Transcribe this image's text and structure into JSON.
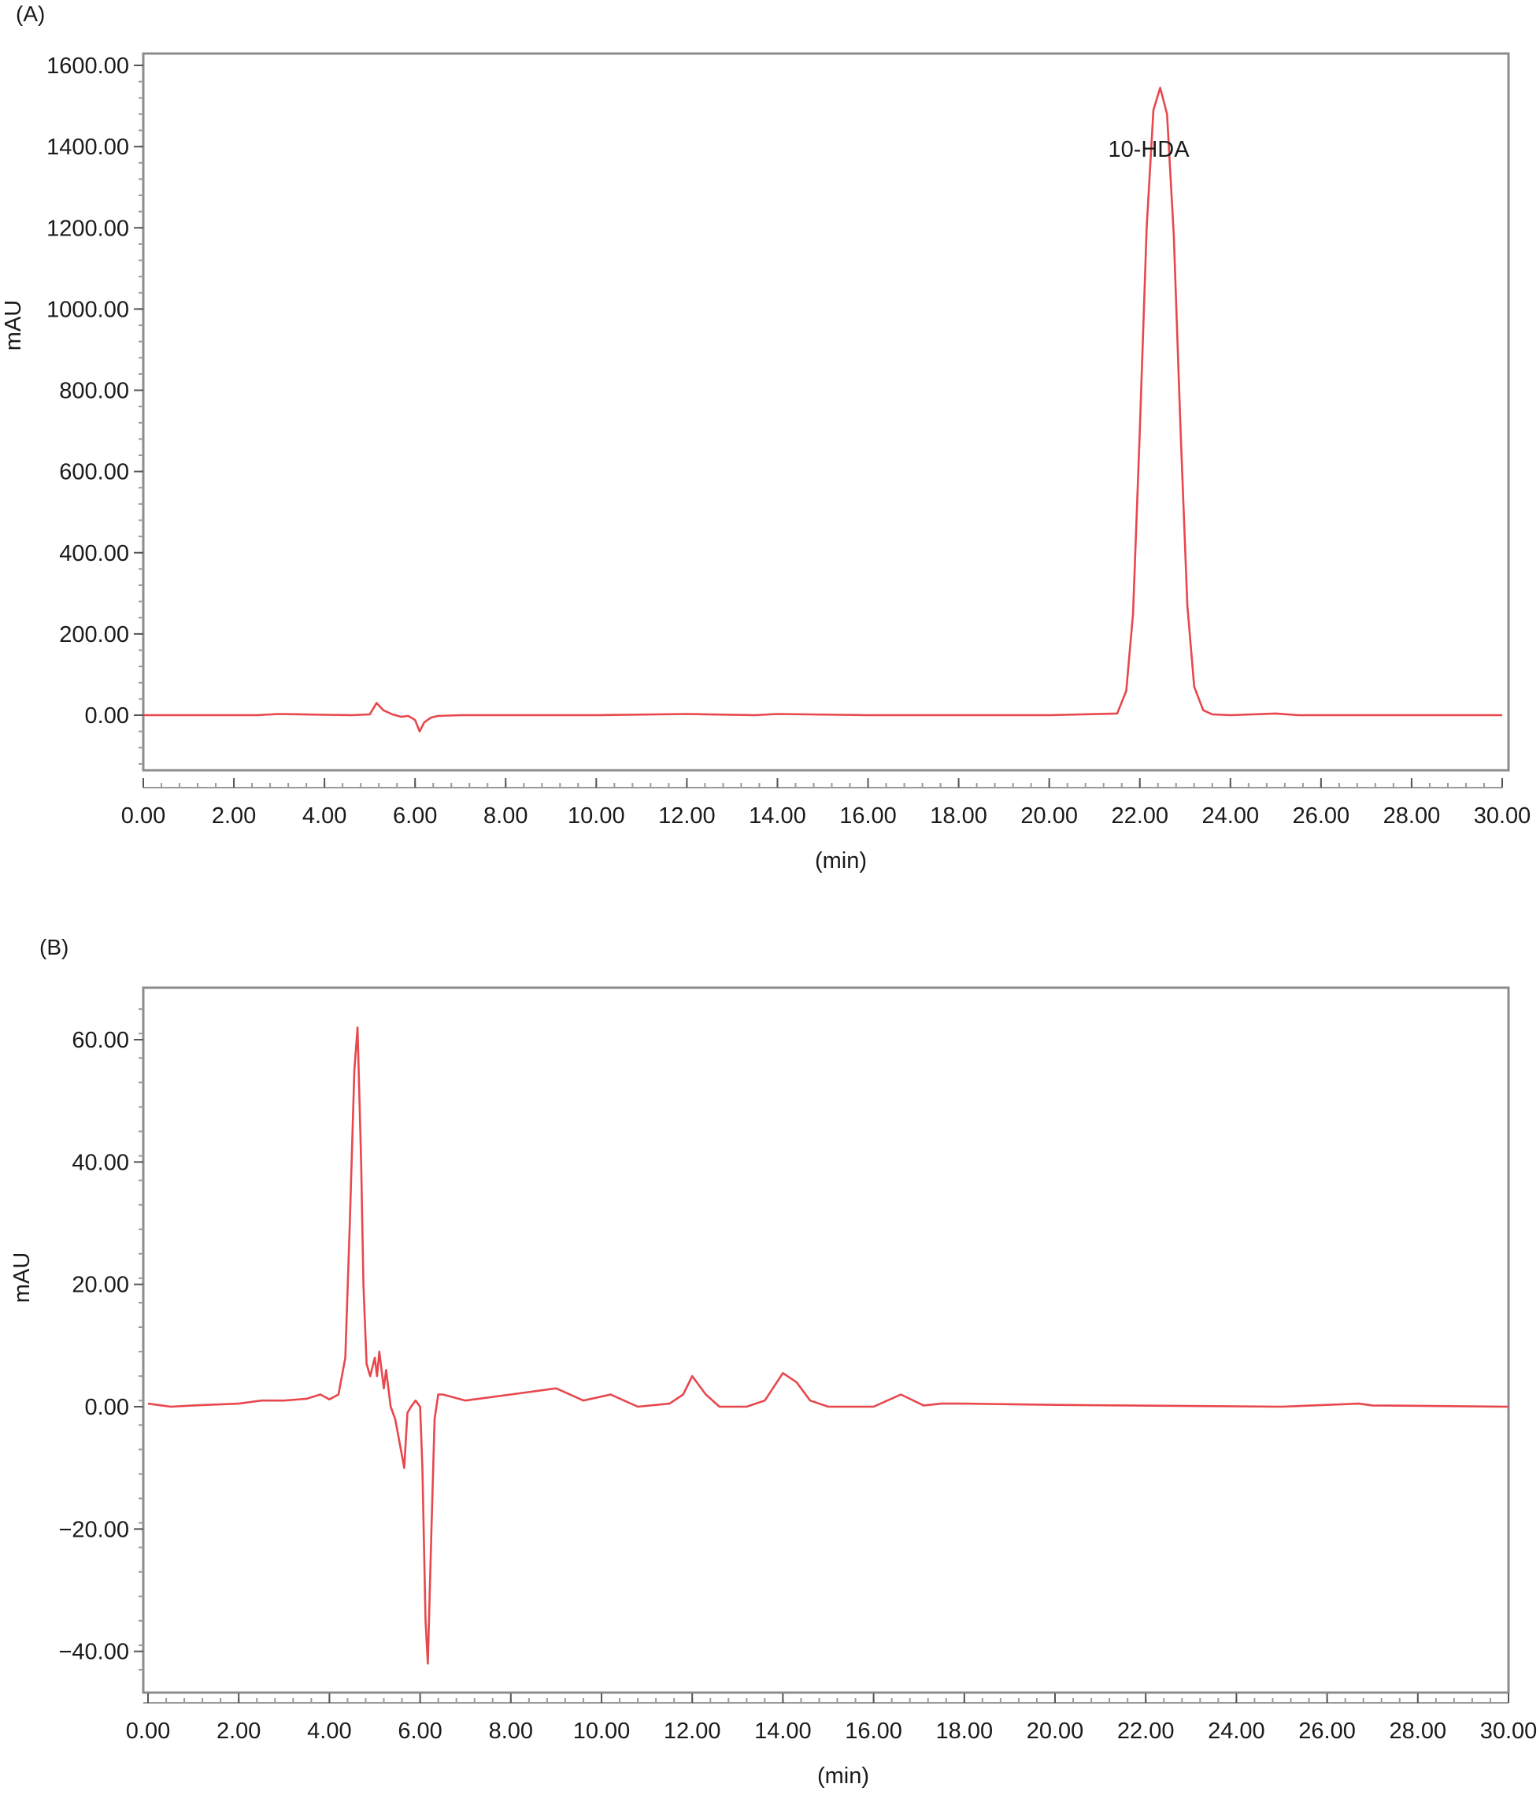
{
  "colors": {
    "trace": "#e8474c",
    "frame": "#8c8c8c",
    "text": "#1a1a1a"
  },
  "chart_data": [
    {
      "type": "line",
      "panel_label": "(A)",
      "xlabel": "(min)",
      "ylabel": "mAU",
      "xlim": [
        0,
        30
      ],
      "ylim": [
        -120,
        1620
      ],
      "x_ticks": [
        "0.00",
        "2.00",
        "4.00",
        "6.00",
        "8.00",
        "10.00",
        "12.00",
        "14.00",
        "16.00",
        "18.00",
        "20.00",
        "22.00",
        "24.00",
        "26.00",
        "28.00",
        "30.00"
      ],
      "y_ticks": [
        "1600.00",
        "1400.00",
        "1200.00",
        "1000.00",
        "800.00",
        "600.00",
        "400.00",
        "200.00",
        "0.00"
      ],
      "annotations": [
        {
          "text": "10-HDA",
          "x": 21.3,
          "y": 1375
        }
      ],
      "series": [
        {
          "x": [
            0,
            2.5,
            3,
            4,
            4.6,
            5.0,
            5.15,
            5.3,
            5.5,
            5.7,
            5.85,
            6.0,
            6.1,
            6.2,
            6.35,
            6.5,
            7,
            10,
            12,
            13.5,
            14,
            16,
            20,
            21.5,
            21.7,
            21.85,
            22.0,
            22.15,
            22.3,
            22.45,
            22.6,
            22.75,
            22.9,
            23.05,
            23.2,
            23.4,
            23.6,
            24,
            25,
            25.5,
            26,
            30
          ],
          "y": [
            0,
            0,
            3,
            1,
            0,
            2,
            30,
            12,
            2,
            -4,
            -2,
            -12,
            -40,
            -18,
            -6,
            -2,
            0,
            0,
            3,
            0,
            3,
            0,
            0,
            4,
            60,
            250,
            700,
            1200,
            1490,
            1545,
            1480,
            1180,
            700,
            270,
            70,
            12,
            2,
            0,
            4,
            0,
            0,
            0
          ]
        }
      ]
    },
    {
      "type": "line",
      "panel_label": "(B)",
      "xlabel": "(min)",
      "ylabel": "mAU",
      "xlim": [
        0,
        30
      ],
      "ylim": [
        -47,
        68
      ],
      "x_ticks": [
        "0.00",
        "2.00",
        "4.00",
        "6.00",
        "8.00",
        "10.00",
        "12.00",
        "14.00",
        "16.00",
        "18.00",
        "20.00",
        "22.00",
        "24.00",
        "26.00",
        "28.00",
        "30.00"
      ],
      "y_ticks": [
        "60.00",
        "40.00",
        "20.00",
        "0.00",
        "−20.00",
        "−40.00"
      ],
      "series": [
        {
          "x": [
            0,
            0.5,
            1,
            2,
            2.5,
            3,
            3.5,
            3.8,
            4.0,
            4.2,
            4.35,
            4.45,
            4.55,
            4.62,
            4.7,
            4.75,
            4.82,
            4.9,
            5.0,
            5.05,
            5.1,
            5.2,
            5.25,
            5.35,
            5.45,
            5.6,
            5.65,
            5.72,
            5.8,
            5.9,
            6.0,
            6.05,
            6.12,
            6.17,
            6.25,
            6.32,
            6.4,
            6.5,
            7,
            8,
            9,
            9.6,
            10.2,
            10.8,
            11.5,
            11.8,
            12.0,
            12.3,
            12.6,
            13.2,
            13.6,
            14.0,
            14.3,
            14.6,
            15,
            16,
            16.6,
            17.1,
            17.5,
            18,
            20,
            25,
            26.7,
            27,
            30
          ],
          "y": [
            0.5,
            0,
            0.2,
            0.5,
            1,
            1,
            1.3,
            2,
            1.2,
            2,
            8,
            30,
            55,
            62,
            40,
            20,
            7,
            5,
            8,
            5,
            9,
            3,
            6,
            0,
            -2,
            -8,
            -10,
            -1,
            0,
            1,
            0,
            -10,
            -35,
            -42,
            -20,
            -2,
            2,
            2,
            1,
            2,
            3,
            1,
            2,
            0,
            0.5,
            2,
            5,
            2,
            0,
            0,
            1,
            5.5,
            4,
            1,
            0,
            0,
            2,
            0.2,
            0.5,
            0.5,
            0.3,
            0,
            0.5,
            0.2,
            0
          ]
        }
      ]
    }
  ]
}
